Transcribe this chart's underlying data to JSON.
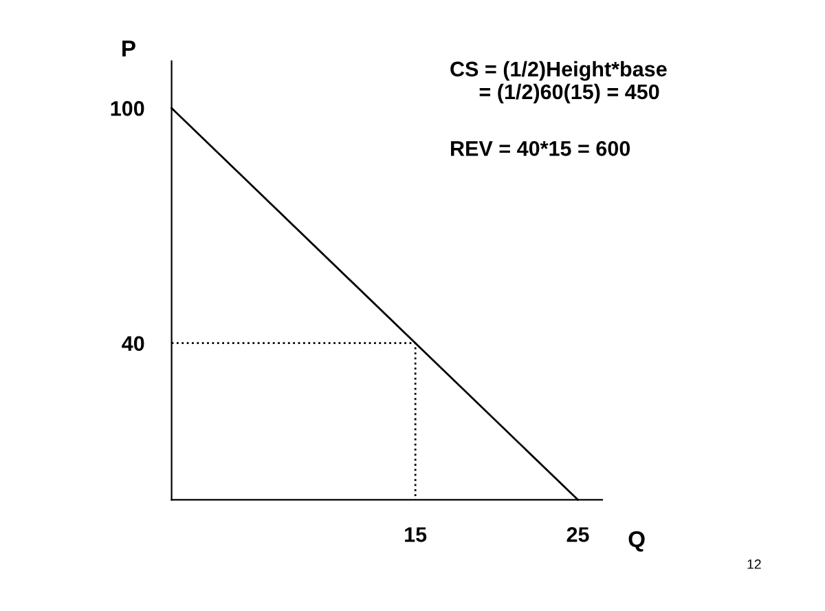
{
  "chart_data": {
    "type": "line",
    "xlabel": "Q",
    "ylabel": "P",
    "series": [
      {
        "x": [
          0,
          25
        ],
        "values": [
          100,
          0
        ],
        "color": "#000000",
        "line_style": "solid"
      },
      {
        "x": [
          0,
          15,
          15
        ],
        "values": [
          40,
          40,
          0
        ],
        "color": "#000000",
        "line_style": "dotted"
      }
    ],
    "xlim": [
      0,
      26.5
    ],
    "ylim": [
      0,
      112
    ],
    "xticks": [
      15,
      25
    ],
    "yticks": [
      40,
      100
    ],
    "grid": false,
    "legend": false,
    "marker": "none",
    "annotations": [
      "CS = (1/2)Height*base\n     = (1/2)60(15) = 450",
      "REV = 40*15 = 600",
      "12"
    ]
  }
}
